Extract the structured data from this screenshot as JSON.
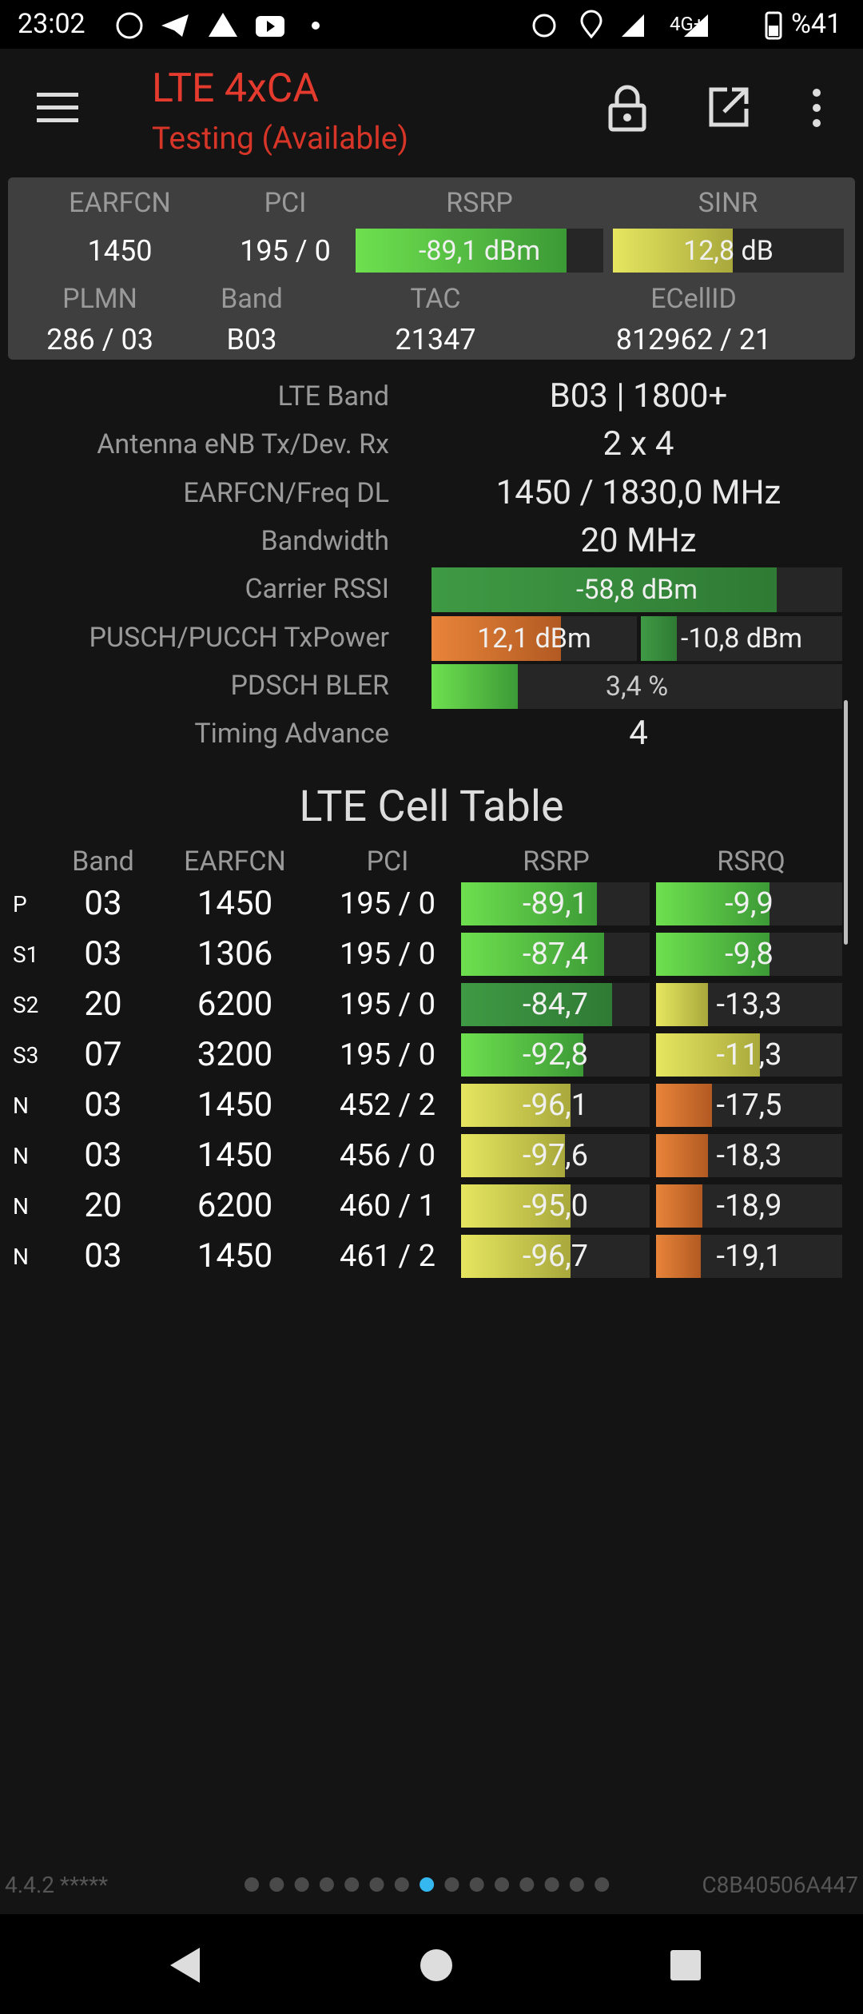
{
  "status_bar": {
    "time": "23:02",
    "network": "4G+",
    "battery": "%41"
  },
  "app_bar": {
    "title": "LTE 4xCA",
    "subtitle": "Testing (Available)"
  },
  "summary": {
    "headers": [
      "EARFCN",
      "PCI",
      "RSRP",
      "SINR"
    ],
    "values": [
      "1450",
      "195 / 0",
      "-89,1 dBm",
      "12,8 dB"
    ],
    "headers2": [
      "PLMN",
      "Band",
      "TAC",
      "ECellID"
    ],
    "values2": [
      "286 / 03",
      "B03",
      "21347",
      "812962 / 21"
    ]
  },
  "details": [
    {
      "label": "LTE Band",
      "values": [
        "B03 | 1800+"
      ]
    },
    {
      "label": "Antenna eNB Tx/Dev. Rx",
      "values": [
        "2 x 4"
      ]
    },
    {
      "label": "EARFCN/Freq DL",
      "values": [
        "1450 / 1830,0 MHz"
      ]
    },
    {
      "label": "Bandwidth",
      "values": [
        "20 MHz"
      ]
    },
    {
      "label": "Carrier RSSI",
      "values": [
        "-58,8 dBm"
      ]
    },
    {
      "label": "PUSCH/PUCCH TxPower",
      "values": [
        "12,1 dBm",
        "-10,8 dBm"
      ]
    },
    {
      "label": "PDSCH BLER",
      "values": [
        "3,4 %"
      ]
    },
    {
      "label": "Timing Advance",
      "values": [
        "4"
      ]
    }
  ],
  "cell_table": {
    "title": "LTE Cell Table",
    "columns": [
      "Band",
      "EARFCN",
      "PCI",
      "RSRP",
      "RSRQ"
    ],
    "rows": [
      [
        "P",
        "03",
        "1450",
        "195 / 0",
        "-89,1",
        "-9,9"
      ],
      [
        "S1",
        "03",
        "1306",
        "195 / 0",
        "-87,4",
        "-9,8"
      ],
      [
        "S2",
        "20",
        "6200",
        "195 / 0",
        "-84,7",
        "-13,3"
      ],
      [
        "S3",
        "07",
        "3200",
        "195 / 0",
        "-92,8",
        "-11,3"
      ],
      [
        "N",
        "03",
        "1450",
        "452 / 2",
        "-96,1",
        "-17,5"
      ],
      [
        "N",
        "03",
        "1450",
        "456 / 0",
        "-97,6",
        "-18,3"
      ],
      [
        "N",
        "20",
        "6200",
        "460 / 1",
        "-95,0",
        "-18,9"
      ],
      [
        "N",
        "03",
        "1450",
        "461 / 2",
        "-96,7",
        "-19,1"
      ]
    ]
  },
  "footer": {
    "version": "4.4.2 *****",
    "device_id": "C8B40506A447"
  }
}
